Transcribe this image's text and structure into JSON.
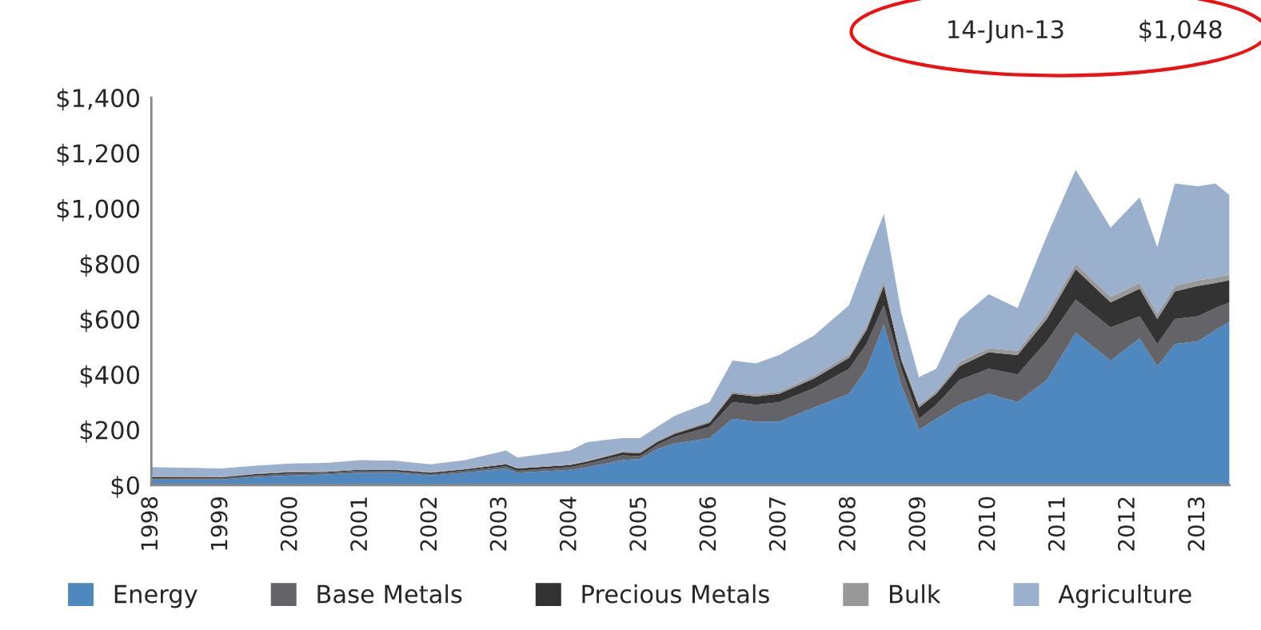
{
  "chart_data": {
    "type": "area",
    "stacked": true,
    "x": [
      "1998-01-01",
      "1999-01-01",
      "1999-07-01",
      "2000-01-01",
      "2000-07-01",
      "2001-01-01",
      "2001-07-01",
      "2002-01-01",
      "2002-07-01",
      "2003-02-01",
      "2003-04-01",
      "2004-01-01",
      "2004-04-01",
      "2004-10-01",
      "2005-01-01",
      "2005-04-01",
      "2005-07-01",
      "2006-01-01",
      "2006-05-01",
      "2006-09-01",
      "2007-01-01",
      "2007-07-01",
      "2008-01-01",
      "2008-04-01",
      "2008-07-01",
      "2008-10-01",
      "2009-01-01",
      "2009-04-01",
      "2009-08-01",
      "2010-01-01",
      "2010-06-01",
      "2010-11-01",
      "2011-04-01",
      "2011-10-01",
      "2012-03-01",
      "2012-06-01",
      "2012-09-01",
      "2013-01-01",
      "2013-04-01",
      "2013-06-14"
    ],
    "series": [
      {
        "name": "Energy",
        "color": "#4f88be",
        "values": [
          20,
          20,
          30,
          35,
          38,
          45,
          45,
          35,
          45,
          60,
          45,
          55,
          65,
          90,
          95,
          130,
          150,
          170,
          240,
          230,
          230,
          280,
          330,
          420,
          580,
          360,
          200,
          240,
          290,
          330,
          300,
          380,
          550,
          450,
          530,
          430,
          510,
          520,
          560,
          590
        ]
      },
      {
        "name": "Base Metals",
        "color": "#636368",
        "values": [
          5,
          4,
          5,
          7,
          6,
          7,
          5,
          5,
          7,
          8,
          7,
          10,
          13,
          18,
          10,
          15,
          25,
          40,
          60,
          60,
          70,
          70,
          90,
          90,
          70,
          60,
          40,
          50,
          90,
          90,
          100,
          140,
          120,
          120,
          80,
          80,
          90,
          90,
          80,
          70
        ]
      },
      {
        "name": "Precious Metals",
        "color": "#333333",
        "values": [
          5,
          4,
          5,
          5,
          4,
          4,
          5,
          5,
          5,
          7,
          8,
          7,
          7,
          10,
          10,
          10,
          10,
          15,
          30,
          30,
          30,
          35,
          40,
          50,
          70,
          30,
          40,
          40,
          50,
          60,
          70,
          80,
          110,
          90,
          100,
          90,
          100,
          110,
          90,
          80
        ]
      },
      {
        "name": "Bulk",
        "color": "#999999",
        "values": [
          2,
          2,
          2,
          2,
          2,
          2,
          2,
          2,
          2,
          3,
          2,
          3,
          3,
          4,
          5,
          5,
          5,
          7,
          8,
          8,
          8,
          10,
          12,
          15,
          20,
          10,
          10,
          10,
          15,
          15,
          15,
          20,
          20,
          20,
          20,
          20,
          20,
          20,
          20,
          20
        ]
      },
      {
        "name": "Agriculture",
        "color": "#9bb0cc",
        "values": [
          33,
          30,
          28,
          29,
          30,
          32,
          31,
          28,
          31,
          47,
          38,
          50,
          67,
          48,
          50,
          50,
          60,
          68,
          112,
          112,
          132,
          145,
          178,
          245,
          240,
          160,
          100,
          80,
          155,
          195,
          155,
          280,
          340,
          250,
          310,
          240,
          370,
          340,
          340,
          288
        ]
      }
    ],
    "xlim": [
      "1998-01-01",
      "2013-06-14"
    ],
    "xticks": [
      "1998",
      "1999",
      "2000",
      "2001",
      "2002",
      "2003",
      "2004",
      "2005",
      "2006",
      "2007",
      "2008",
      "2009",
      "2010",
      "2011",
      "2012",
      "2013"
    ],
    "ylim": [
      0,
      1400
    ],
    "yticks": [
      {
        "value": 0,
        "label": "$0"
      },
      {
        "value": 200,
        "label": "$200"
      },
      {
        "value": 400,
        "label": "$400"
      },
      {
        "value": 600,
        "label": "$600"
      },
      {
        "value": 800,
        "label": "$800"
      },
      {
        "value": 1000,
        "label": "$1,000"
      },
      {
        "value": 1200,
        "label": "$1,200"
      },
      {
        "value": 1400,
        "label": "$1,400"
      }
    ],
    "annotations": [
      "14-Jun-13",
      "$1,048"
    ],
    "grid": false,
    "legend": "bottom"
  }
}
